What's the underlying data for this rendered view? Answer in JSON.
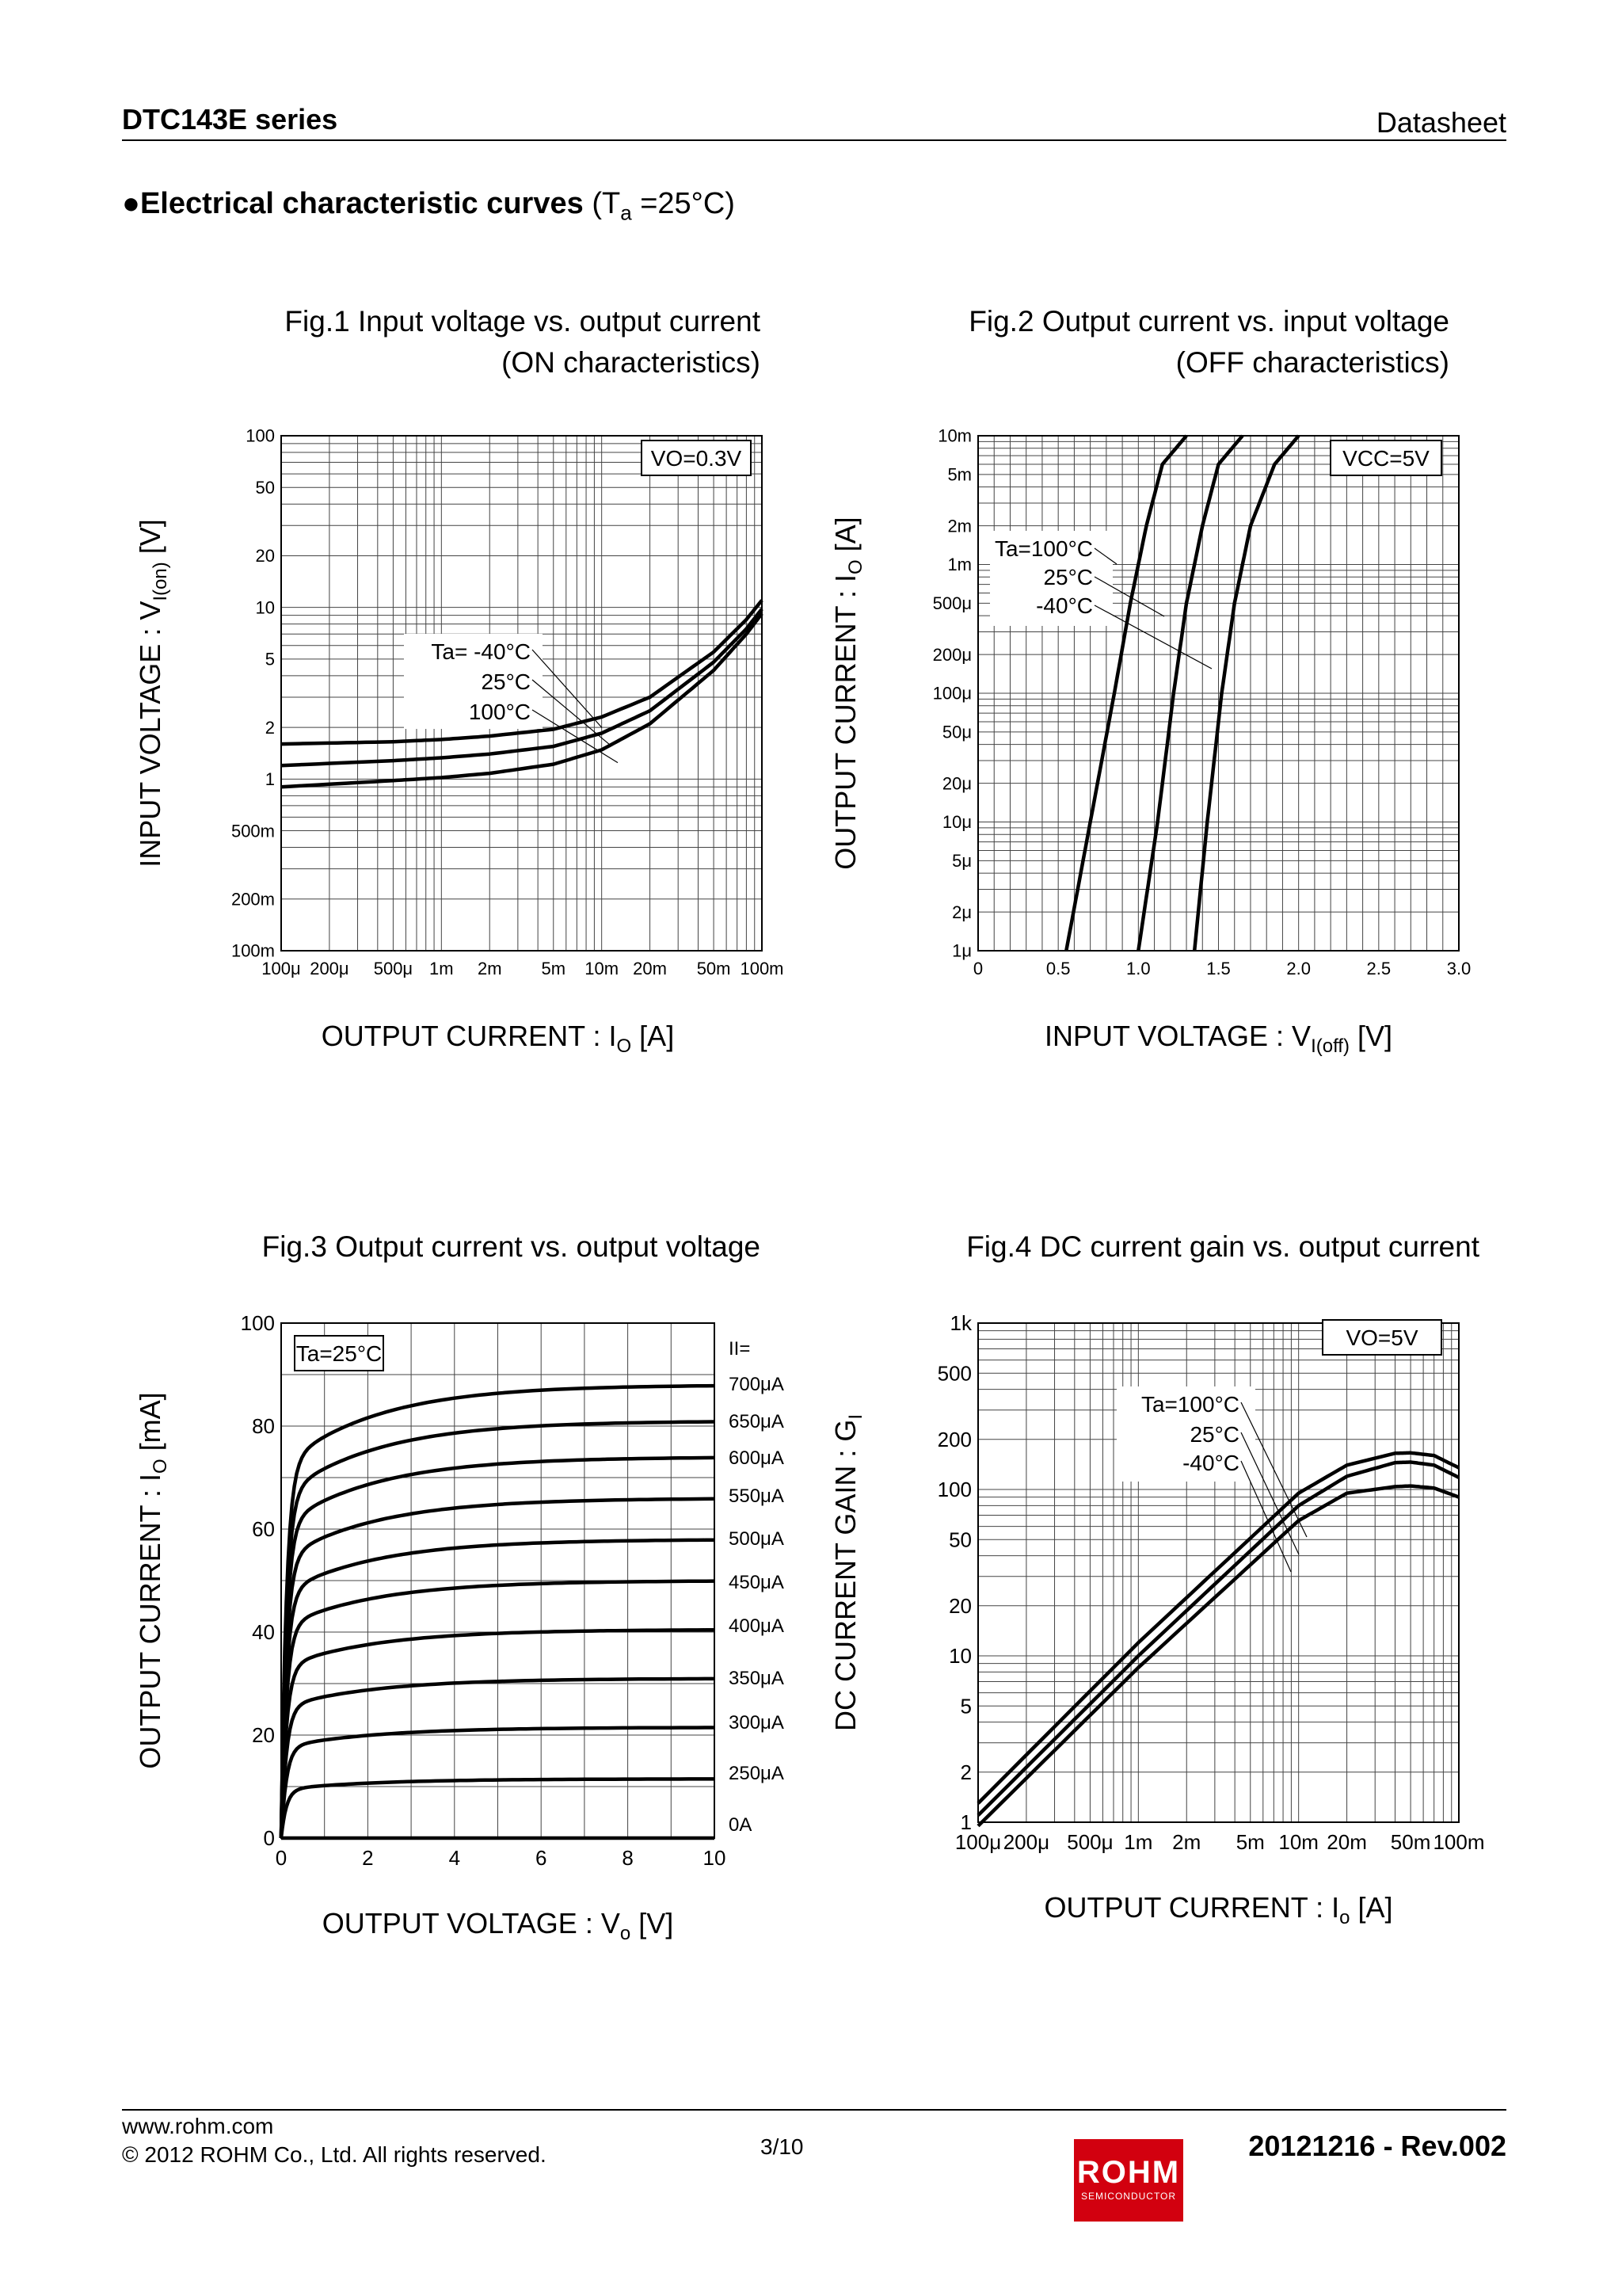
{
  "header": {
    "doc_title": "DTC143E series",
    "doc_type": "Datasheet"
  },
  "section": {
    "bullet": "●",
    "title_bold": "Electrical characteristic curves",
    "cond_pre": "(T",
    "cond_sub": "a",
    "cond_post": " =25°C)"
  },
  "chart_data": [
    {
      "id": "fig1",
      "type": "line",
      "title_line1": "Fig.1 Input voltage vs. output current",
      "title_line2": "(ON characteristics)",
      "xlabel_pre": "OUTPUT CURRENT : I",
      "xlabel_sub": "O",
      "xlabel_post": " [A]",
      "ylabel_pre": "INPUT VOLTAGE : V",
      "ylabel_sub": "I(on)",
      "ylabel_post": " [V]",
      "xscale": "log",
      "yscale": "log",
      "xlim": [
        0.0001,
        0.1
      ],
      "ylim": [
        0.1,
        100
      ],
      "xticks": [
        0.0001,
        0.0002,
        0.0005,
        0.001,
        0.002,
        0.005,
        0.01,
        0.02,
        0.05,
        0.1
      ],
      "xtick_labels": [
        "100μ",
        "200μ",
        "500μ",
        "1m",
        "2m",
        "5m",
        "10m",
        "20m",
        "50m",
        "100m"
      ],
      "yticks": [
        0.1,
        0.2,
        0.5,
        1,
        2,
        5,
        10,
        20,
        50,
        100
      ],
      "ytick_labels": [
        "100m",
        "200m",
        "500m",
        "1",
        "2",
        "5",
        "10",
        "20",
        "50",
        "100"
      ],
      "condition": "VO=0.3V",
      "legend_labels": [
        "Ta= -40°C",
        "25°C",
        "100°C"
      ],
      "series": [
        {
          "name": "Ta=-40°C",
          "x": [
            0.0001,
            0.0005,
            0.001,
            0.002,
            0.005,
            0.01,
            0.02,
            0.05,
            0.08,
            0.1
          ],
          "y": [
            1.6,
            1.65,
            1.7,
            1.78,
            1.95,
            2.3,
            3.0,
            5.5,
            8.5,
            11
          ]
        },
        {
          "name": "Ta=25°C",
          "x": [
            0.0001,
            0.0005,
            0.001,
            0.002,
            0.005,
            0.01,
            0.02,
            0.05,
            0.08,
            0.1
          ],
          "y": [
            1.2,
            1.28,
            1.33,
            1.4,
            1.55,
            1.85,
            2.5,
            4.8,
            7.5,
            9.8
          ]
        },
        {
          "name": "Ta=100°C",
          "x": [
            0.0001,
            0.0005,
            0.001,
            0.002,
            0.005,
            0.01,
            0.02,
            0.05,
            0.08,
            0.1
          ],
          "y": [
            0.9,
            0.98,
            1.02,
            1.08,
            1.22,
            1.48,
            2.1,
            4.3,
            7.0,
            9.2
          ]
        }
      ]
    },
    {
      "id": "fig2",
      "type": "line",
      "title_line1": "Fig.2 Output current vs. input voltage",
      "title_line2": "(OFF characteristics)",
      "xlabel_pre": "INPUT VOLTAGE : V",
      "xlabel_sub": "I(off)",
      "xlabel_post": " [V]",
      "ylabel_pre": "OUTPUT CURRENT : I",
      "ylabel_sub": "O",
      "ylabel_post": " [A]",
      "xscale": "linear",
      "yscale": "log",
      "xlim": [
        0,
        3.0
      ],
      "ylim": [
        1e-06,
        0.01
      ],
      "xticks": [
        0,
        0.5,
        1.0,
        1.5,
        2.0,
        2.5,
        3.0
      ],
      "xtick_labels": [
        "0",
        "0.5",
        "1.0",
        "1.5",
        "2.0",
        "2.5",
        "3.0"
      ],
      "yticks": [
        1e-06,
        2e-06,
        5e-06,
        1e-05,
        2e-05,
        5e-05,
        0.0001,
        0.0002,
        0.0005,
        0.001,
        0.002,
        0.005,
        0.01
      ],
      "ytick_labels": [
        "1μ",
        "2μ",
        "5μ",
        "10μ",
        "20μ",
        "50μ",
        "100μ",
        "200μ",
        "500μ",
        "1m",
        "2m",
        "5m",
        "10m"
      ],
      "condition": "VCC=5V",
      "legend_labels": [
        "Ta=100°C",
        "25°C",
        "-40°C"
      ],
      "series": [
        {
          "name": "Ta=100°C",
          "x": [
            0.55,
            0.7,
            0.85,
            0.95,
            1.05,
            1.15,
            1.3
          ],
          "y": [
            1e-06,
            1e-05,
            0.0001,
            0.0005,
            0.002,
            0.006,
            0.01
          ]
        },
        {
          "name": "Ta=25°C",
          "x": [
            1.0,
            1.12,
            1.22,
            1.3,
            1.4,
            1.5,
            1.65
          ],
          "y": [
            1e-06,
            1e-05,
            0.0001,
            0.0005,
            0.002,
            0.006,
            0.01
          ]
        },
        {
          "name": "Ta=-40°C",
          "x": [
            1.35,
            1.43,
            1.52,
            1.6,
            1.7,
            1.85,
            2.0
          ],
          "y": [
            1e-06,
            1e-05,
            0.0001,
            0.0005,
            0.002,
            0.006,
            0.01
          ]
        }
      ]
    },
    {
      "id": "fig3",
      "type": "line",
      "title_line1": "Fig.3 Output current vs. output voltage",
      "xlabel_pre": "OUTPUT VOLTAGE : V",
      "xlabel_sub": "o",
      "xlabel_post": " [V]",
      "ylabel_pre": "OUTPUT CURRENT : I",
      "ylabel_sub": "O",
      "ylabel_post": " [mA]",
      "xscale": "linear",
      "yscale": "linear",
      "xlim": [
        0,
        10
      ],
      "ylim": [
        0,
        100
      ],
      "xticks": [
        0,
        2,
        4,
        6,
        8,
        10
      ],
      "xtick_labels": [
        "0",
        "2",
        "4",
        "6",
        "8",
        "10"
      ],
      "yticks": [
        0,
        20,
        40,
        60,
        80,
        100
      ],
      "ytick_labels": [
        "0",
        "20",
        "40",
        "60",
        "80",
        "100"
      ],
      "condition": "Ta=25°C",
      "legend_header": "II=",
      "series": [
        {
          "name": "700μA",
          "sat": 88,
          "k": 1.8
        },
        {
          "name": "650μA",
          "sat": 81,
          "k": 1.7
        },
        {
          "name": "600μA",
          "sat": 74,
          "k": 1.5
        },
        {
          "name": "550μA",
          "sat": 66,
          "k": 1.3
        },
        {
          "name": "500μA",
          "sat": 58,
          "k": 1.1
        },
        {
          "name": "450μA",
          "sat": 50,
          "k": 0.9
        },
        {
          "name": "400μA",
          "sat": 40.5,
          "k": 0.7
        },
        {
          "name": "350μA",
          "sat": 31,
          "k": 0.5
        },
        {
          "name": "300μA",
          "sat": 21.5,
          "k": 0.3
        },
        {
          "name": "250μA",
          "sat": 11.5,
          "k": 0.15
        },
        {
          "name": "0A",
          "sat": 0,
          "k": 0.1
        }
      ]
    },
    {
      "id": "fig4",
      "type": "line",
      "title_line1": "Fig.4 DC current gain vs. output current",
      "xlabel_pre": "OUTPUT CURRENT : I",
      "xlabel_sub": "o",
      "xlabel_post": " [A]",
      "ylabel_pre": "DC CURRENT GAIN : G",
      "ylabel_sub": "I",
      "ylabel_post": "",
      "xscale": "log",
      "yscale": "log",
      "xlim": [
        0.0001,
        0.1
      ],
      "ylim": [
        1,
        1000
      ],
      "xticks": [
        0.0001,
        0.0002,
        0.0005,
        0.001,
        0.002,
        0.005,
        0.01,
        0.02,
        0.05,
        0.1
      ],
      "xtick_labels": [
        "100μ",
        "200μ",
        "500μ",
        "1m",
        "2m",
        "5m",
        "10m",
        "20m",
        "50m",
        "100m"
      ],
      "yticks": [
        1,
        2,
        5,
        10,
        20,
        50,
        100,
        200,
        500,
        1000
      ],
      "ytick_labels": [
        "1",
        "2",
        "5",
        "10",
        "20",
        "50",
        "100",
        "200",
        "500",
        "1k"
      ],
      "condition": "VO=5V",
      "legend_labels": [
        "Ta=100°C",
        "25°C",
        "-40°C"
      ],
      "series": [
        {
          "name": "Ta=100°C",
          "x": [
            0.0001,
            0.001,
            0.01,
            0.02,
            0.04,
            0.05,
            0.07,
            0.1
          ],
          "y": [
            1.3,
            12,
            95,
            140,
            165,
            166,
            160,
            135
          ]
        },
        {
          "name": "Ta=25°C",
          "x": [
            0.0001,
            0.001,
            0.01,
            0.02,
            0.04,
            0.05,
            0.07,
            0.1
          ],
          "y": [
            1.1,
            10,
            80,
            120,
            145,
            146,
            140,
            118
          ]
        },
        {
          "name": "Ta=-40°C",
          "x": [
            0.0001,
            0.001,
            0.01,
            0.02,
            0.04,
            0.05,
            0.07,
            0.1
          ],
          "y": [
            0.95,
            8.5,
            65,
            95,
            104,
            105,
            102,
            90
          ]
        }
      ]
    }
  ],
  "footer": {
    "url": "www.rohm.com",
    "copyright": "© 2012 ROHM Co., Ltd. All rights reserved.",
    "page": "3/10",
    "revision": "20121216 - Rev.002",
    "logo_text": "ROHM",
    "logo_sub": "SEMICONDUCTOR"
  }
}
